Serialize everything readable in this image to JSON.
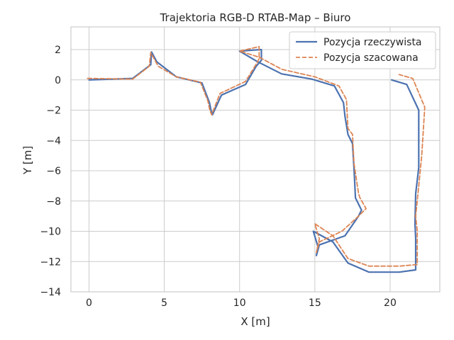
{
  "chart_data": {
    "type": "line",
    "title": "Trajektoria RGB-D RTAB-Map – Biuro",
    "xlabel": "X [m]",
    "ylabel": "Y [m]",
    "xlim": [
      -1.2,
      23.3
    ],
    "ylim": [
      -14,
      3.5
    ],
    "xticks": [
      0,
      5,
      10,
      15,
      20
    ],
    "yticks": [
      -14,
      -12,
      -10,
      -8,
      -6,
      -4,
      -2,
      0,
      2
    ],
    "grid": true,
    "legend_position": "top-right",
    "series": [
      {
        "name": "Pozycja rzeczywista",
        "color": "#4c72b0",
        "style": "solid",
        "x": [
          0,
          2.9,
          4.1,
          4.15,
          4.5,
          5.8,
          7.5,
          8.0,
          8.1,
          8.2,
          8.8,
          10.4,
          11.1,
          11.45,
          11.45,
          11.3,
          10.0,
          11.2,
          12.8,
          14.8,
          16.3,
          16.9,
          17.0,
          17.2,
          17.5,
          17.6,
          17.7,
          17.8,
          18.1,
          17.9,
          17.0,
          15.3,
          15.1,
          15.2,
          14.9,
          16.2,
          17.2,
          18.6,
          20.6,
          21.7,
          21.7,
          21.65,
          21.7,
          21.9,
          21.9,
          21.9,
          21.1,
          20.1
        ],
        "y": [
          0,
          0.1,
          1.0,
          1.85,
          1.2,
          0.2,
          -0.2,
          -1.5,
          -2.0,
          -2.3,
          -1.0,
          -0.3,
          0.9,
          1.3,
          2.0,
          2.0,
          1.9,
          1.2,
          0.4,
          0.05,
          -0.4,
          -1.5,
          -2.4,
          -3.6,
          -4.2,
          -5.8,
          -7.8,
          -8.0,
          -8.6,
          -9.0,
          -10.3,
          -10.9,
          -11.6,
          -11.0,
          -10.0,
          -10.7,
          -12.1,
          -12.7,
          -12.7,
          -12.55,
          -10.5,
          -9.5,
          -7.5,
          -5.8,
          -4.0,
          -2.0,
          -0.3,
          0.0
        ],
        "values_note": "approximate, read from plot"
      },
      {
        "name": "Pozycja szacowana",
        "color": "#dd8452",
        "style": "dashed",
        "x": [
          -0.1,
          0.1,
          2.9,
          4.0,
          4.1,
          4.6,
          5.8,
          7.4,
          7.9,
          8.0,
          8.1,
          8.15,
          8.7,
          10.4,
          11.2,
          11.3,
          11.3,
          10.0,
          11.3,
          12.8,
          15.0,
          16.6,
          17.1,
          17.2,
          17.5,
          17.6,
          17.9,
          18.0,
          18.4,
          17.9,
          16.8,
          15.3,
          15.1,
          15.3,
          15.0,
          16.2,
          17.2,
          18.6,
          20.6,
          21.8,
          21.8,
          21.7,
          21.9,
          22.1,
          22.3,
          21.5,
          20.6
        ],
        "y": [
          0.1,
          0.1,
          0.05,
          0.9,
          1.8,
          0.9,
          0.2,
          -0.15,
          -1.4,
          -1.9,
          -2.2,
          -2.3,
          -0.9,
          -0.1,
          1.2,
          1.4,
          2.2,
          1.9,
          1.5,
          0.7,
          0.2,
          -0.4,
          -1.3,
          -3.2,
          -3.6,
          -5.5,
          -7.5,
          -7.8,
          -8.5,
          -9.0,
          -10.0,
          -10.7,
          -11.4,
          -10.5,
          -9.5,
          -10.3,
          -11.8,
          -12.3,
          -12.3,
          -12.2,
          -10.0,
          -9.0,
          -7.0,
          -5.0,
          -1.8,
          0.1,
          0.35
        ],
        "values_note": "approximate, read from plot"
      }
    ]
  }
}
